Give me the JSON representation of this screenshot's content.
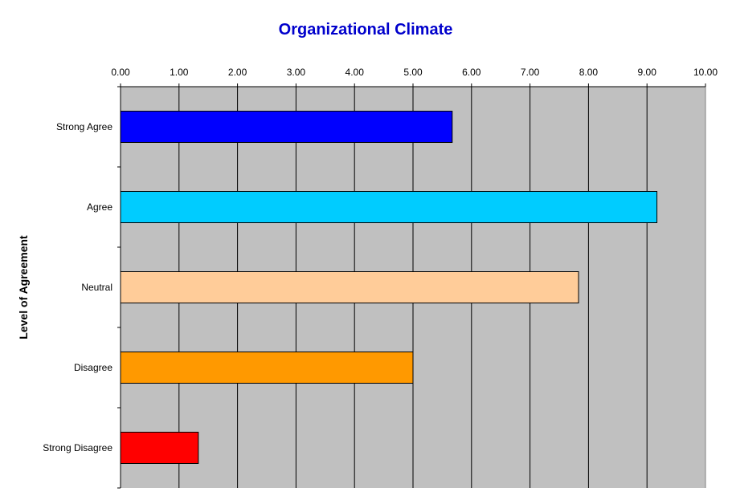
{
  "chart_data": {
    "type": "bar",
    "orientation": "horizontal",
    "title": "Organizational Climate",
    "xlabel": "",
    "ylabel": "Level of Agreement",
    "xlim": [
      0,
      10
    ],
    "x_ticks": [
      "0.00",
      "1.00",
      "2.00",
      "3.00",
      "4.00",
      "5.00",
      "6.00",
      "7.00",
      "8.00",
      "9.00",
      "10.00"
    ],
    "x_axis_position": "top",
    "grid": true,
    "legend": "none",
    "plot_background": "#c0c0c0",
    "title_color": "#0000cc",
    "categories": [
      "Strong Agree",
      "Agree",
      "Neutral",
      "Disagree",
      "Strong Disagree"
    ],
    "values": [
      5.67,
      9.17,
      7.83,
      5.0,
      1.33
    ],
    "colors": [
      "#0000ff",
      "#00ccff",
      "#ffcc99",
      "#ff9900",
      "#ff0000"
    ]
  }
}
